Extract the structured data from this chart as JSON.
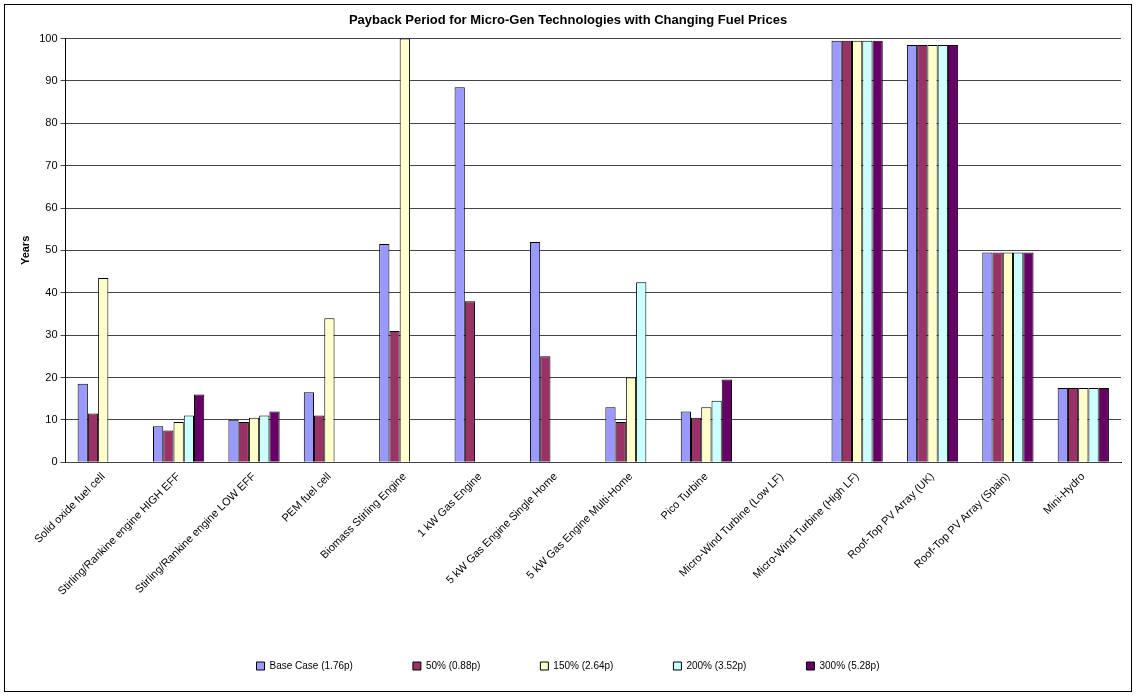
{
  "chart_data": {
    "type": "bar",
    "title": "Payback Period for Micro-Gen Technologies with Changing Fuel Prices",
    "ylabel": "Years",
    "categories": [
      "Solid oxide fuel cell",
      "Stirling/Rankine engine HIGH EFF",
      "Stirling/Rankine engine LOW EFF",
      "PEM fuel cell",
      "Biomass Stirling Engine",
      "1 kW Gas Engine",
      "5 kW Gas Engine Single Home",
      "5 kW Gas Engine Multi-Home",
      "Pico Turbine",
      "Micro-Wind Turbine (Low LF)",
      "Micro-Wind Turbine (High LF)",
      "Roof-Top PV Array (UK)",
      "Roof-Top PV Array (Spain)",
      "Mini-Hydro"
    ],
    "series": [
      {
        "name": "Base Case (1.76p)",
        "color": "#9999ff",
        "values": [
          18.5,
          8.5,
          10,
          16.5,
          51.5,
          88.5,
          52,
          13,
          12,
          null,
          99.5,
          98.5,
          49.5,
          17.5
        ]
      },
      {
        "name": "50% (0.88p)",
        "color": "#993366",
        "values": [
          11.5,
          7.5,
          9.5,
          11,
          31,
          38,
          25,
          9.5,
          10.5,
          null,
          99.5,
          98.5,
          49.5,
          17.5
        ]
      },
      {
        "name": "150% (2.64p)",
        "color": "#ffffcc",
        "values": [
          43.5,
          9.5,
          10.5,
          34,
          100,
          null,
          null,
          20,
          13,
          null,
          99.5,
          98.5,
          49.5,
          17.5
        ]
      },
      {
        "name": "200% (3.52p)",
        "color": "#ccffff",
        "values": [
          null,
          11,
          11,
          null,
          null,
          null,
          null,
          42.5,
          14.5,
          null,
          99.5,
          98.5,
          49.5,
          17.5
        ]
      },
      {
        "name": "300% (5.28p)",
        "color": "#660066",
        "values": [
          null,
          16,
          12,
          null,
          null,
          null,
          null,
          null,
          19.5,
          null,
          99.5,
          98.5,
          49.5,
          17.5
        ]
      }
    ],
    "ylim": [
      0,
      100
    ],
    "yticks": [
      0,
      10,
      20,
      30,
      40,
      50,
      60,
      70,
      80,
      90,
      100
    ],
    "grid": "y",
    "legend": "bottom"
  }
}
